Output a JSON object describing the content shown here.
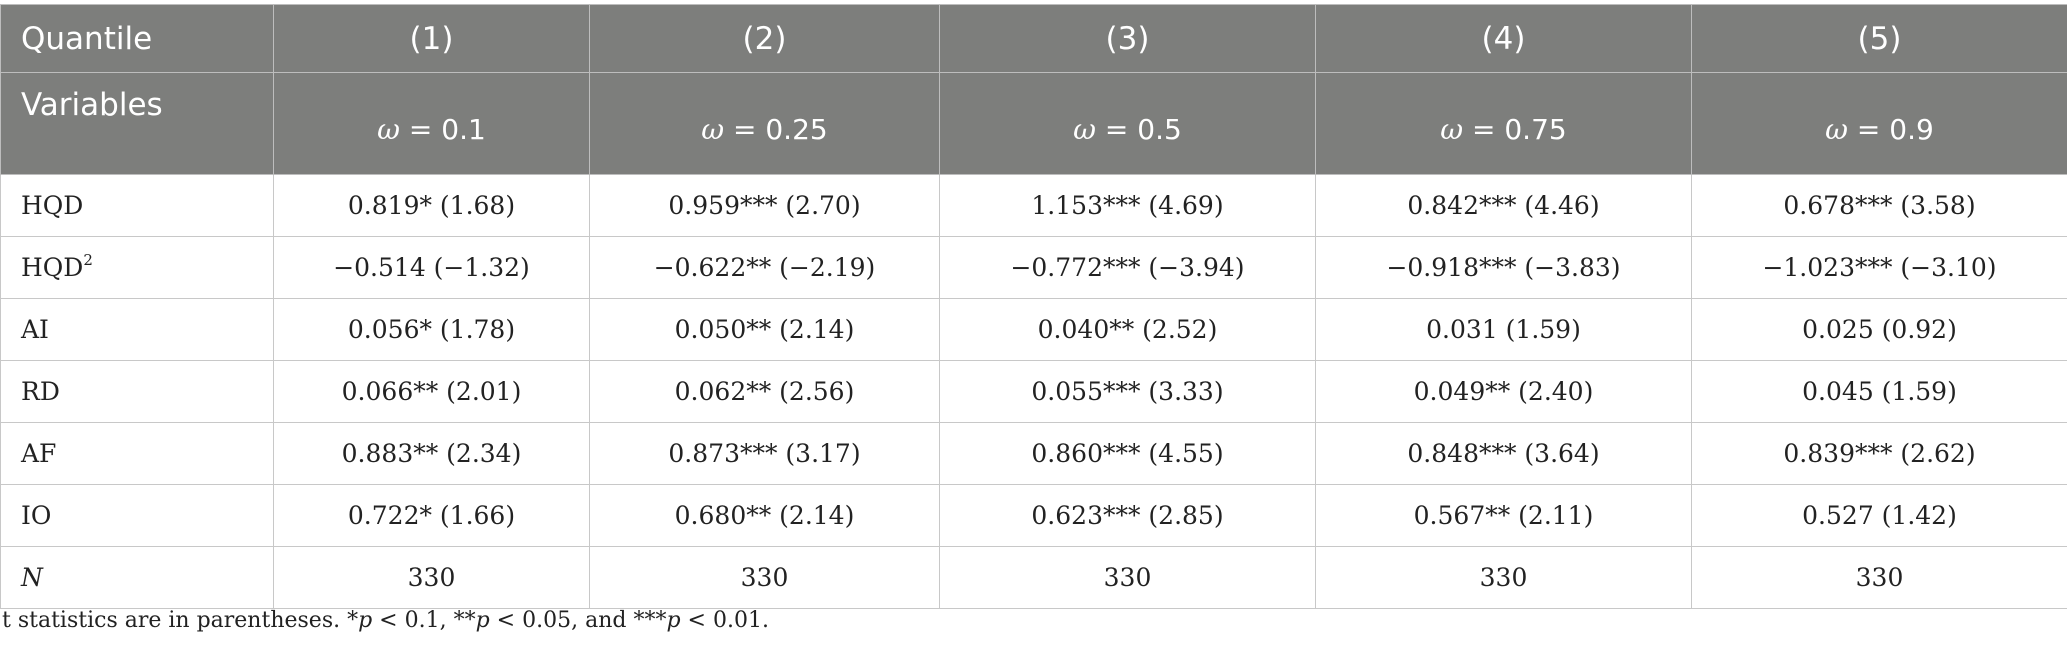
{
  "header": {
    "row1_label": "Quantile",
    "row2_label": "Variables",
    "columns": [
      {
        "num": "(1)",
        "omega_symbol": "ω",
        "omega_value": " = 0.1"
      },
      {
        "num": "(2)",
        "omega_symbol": "ω",
        "omega_value": " = 0.25"
      },
      {
        "num": "(3)",
        "omega_symbol": "ω",
        "omega_value": " = 0.5"
      },
      {
        "num": "(4)",
        "omega_symbol": "ω",
        "omega_value": " = 0.75"
      },
      {
        "num": "(5)",
        "omega_symbol": "ω",
        "omega_value": " = 0.9"
      }
    ]
  },
  "rows": [
    {
      "variable": "HQD",
      "sup": "",
      "cells": [
        "0.819* (1.68)",
        "0.959*** (2.70)",
        "1.153*** (4.69)",
        "0.842*** (4.46)",
        "0.678*** (3.58)"
      ]
    },
    {
      "variable": "HQD",
      "sup": "2",
      "cells": [
        "−0.514 (−1.32)",
        "−0.622** (−2.19)",
        "−0.772*** (−3.94)",
        "−0.918*** (−3.83)",
        "−1.023*** (−3.10)"
      ]
    },
    {
      "variable": "AI",
      "sup": "",
      "cells": [
        "0.056* (1.78)",
        "0.050** (2.14)",
        "0.040** (2.52)",
        "0.031 (1.59)",
        "0.025 (0.92)"
      ]
    },
    {
      "variable": "RD",
      "sup": "",
      "cells": [
        "0.066** (2.01)",
        "0.062** (2.56)",
        "0.055*** (3.33)",
        "0.049** (2.40)",
        "0.045 (1.59)"
      ]
    },
    {
      "variable": "AF",
      "sup": "",
      "cells": [
        "0.883** (2.34)",
        "0.873*** (3.17)",
        "0.860*** (4.55)",
        "0.848*** (3.64)",
        "0.839*** (2.62)"
      ]
    },
    {
      "variable": "IO",
      "sup": "",
      "cells": [
        "0.722* (1.66)",
        "0.680** (2.14)",
        "0.623*** (2.85)",
        "0.567** (2.11)",
        "0.527 (1.42)"
      ]
    },
    {
      "variable": "N",
      "sup": "",
      "cells": [
        "330",
        "330",
        "330",
        "330",
        "330"
      ]
    }
  ],
  "footnote": {
    "parts": [
      "t statistics are in parentheses. *",
      "p",
      " < 0.1, **",
      "p",
      " < 0.05, and ***",
      "p",
      " < 0.01."
    ]
  }
}
